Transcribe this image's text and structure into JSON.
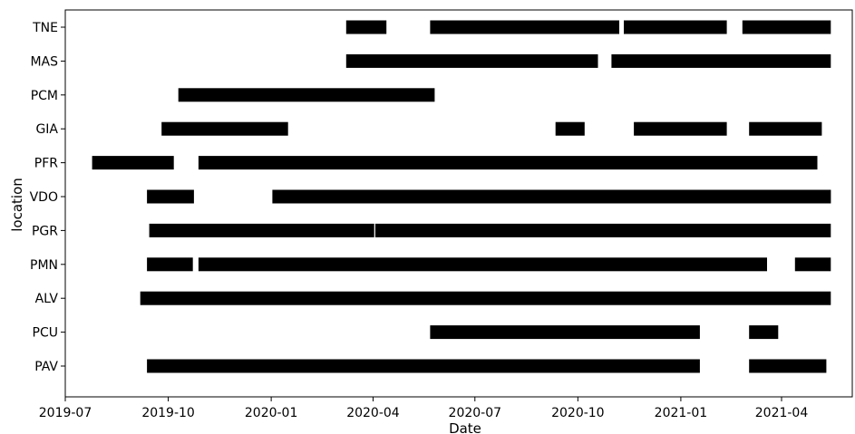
{
  "chart_data": {
    "type": "timeline",
    "xlabel": "Date",
    "ylabel": "location",
    "x_ticks": [
      "2019-07",
      "2019-10",
      "2020-01",
      "2020-04",
      "2020-07",
      "2020-10",
      "2021-01",
      "2021-04"
    ],
    "xlim": [
      "2019-07-01",
      "2021-05-20"
    ],
    "grid": false,
    "bar_color": "#000000",
    "categories": [
      "TNE",
      "MAS",
      "PCM",
      "GIA",
      "PFR",
      "VDO",
      "PGR",
      "PMN",
      "ALV",
      "PCU",
      "PAV"
    ],
    "series": [
      {
        "location": "TNE",
        "segments": [
          [
            "2020-03-08",
            "2020-04-13"
          ],
          [
            "2020-05-22",
            "2020-11-07"
          ],
          [
            "2020-11-11",
            "2021-02-11"
          ],
          [
            "2021-02-25",
            "2021-05-15"
          ]
        ]
      },
      {
        "location": "MAS",
        "segments": [
          [
            "2020-03-08",
            "2020-10-19"
          ],
          [
            "2020-10-31",
            "2021-05-15"
          ]
        ]
      },
      {
        "location": "PCM",
        "segments": [
          [
            "2019-10-10",
            "2020-05-26"
          ]
        ]
      },
      {
        "location": "GIA",
        "segments": [
          [
            "2019-09-25",
            "2020-01-16"
          ],
          [
            "2020-09-11",
            "2020-10-07"
          ],
          [
            "2020-11-20",
            "2021-02-11"
          ],
          [
            "2021-03-03",
            "2021-05-07"
          ]
        ]
      },
      {
        "location": "PFR",
        "segments": [
          [
            "2019-07-25",
            "2019-10-06"
          ],
          [
            "2019-10-28",
            "2021-05-03"
          ]
        ]
      },
      {
        "location": "VDO",
        "segments": [
          [
            "2019-09-12",
            "2019-10-24"
          ],
          [
            "2020-01-02",
            "2021-05-15"
          ]
        ]
      },
      {
        "location": "PGR",
        "segments": [
          [
            "2019-09-14",
            "2020-04-02"
          ],
          [
            "2020-04-03",
            "2021-05-15"
          ]
        ]
      },
      {
        "location": "PMN",
        "segments": [
          [
            "2019-09-12",
            "2019-10-23"
          ],
          [
            "2019-10-28",
            "2021-03-19"
          ],
          [
            "2021-04-13",
            "2021-05-15"
          ]
        ]
      },
      {
        "location": "ALV",
        "segments": [
          [
            "2019-09-06",
            "2021-05-15"
          ]
        ]
      },
      {
        "location": "PCU",
        "segments": [
          [
            "2020-05-22",
            "2021-01-18"
          ],
          [
            "2021-03-03",
            "2021-03-29"
          ]
        ]
      },
      {
        "location": "PAV",
        "segments": [
          [
            "2019-09-12",
            "2021-01-18"
          ],
          [
            "2021-03-03",
            "2021-05-11"
          ]
        ]
      }
    ]
  }
}
